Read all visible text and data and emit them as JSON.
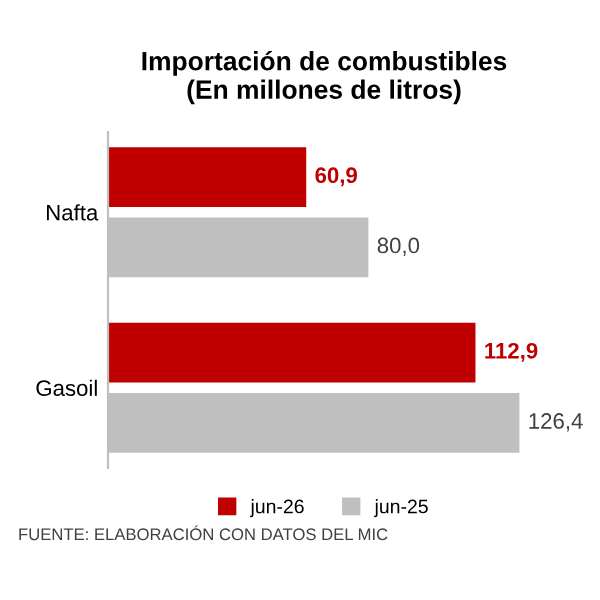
{
  "chart_data": {
    "type": "bar",
    "orientation": "horizontal",
    "title": "Importación de combustibles\n(En millones de litros)",
    "categories": [
      "Nafta",
      "Gasoil"
    ],
    "series": [
      {
        "name": "jun-26",
        "color": "#c00000",
        "values": [
          60.9,
          112.9
        ],
        "value_labels": [
          "60,9",
          "112,9"
        ]
      },
      {
        "name": "jun-25",
        "color": "#bfbfbf",
        "values": [
          80.0,
          126.4
        ],
        "value_labels": [
          "80,0",
          "126,4"
        ]
      }
    ],
    "legend": "bottom",
    "grid": false,
    "annotations": [
      "FUENTE: ELABORACIÓN CON DATOS DEL MIC"
    ]
  }
}
